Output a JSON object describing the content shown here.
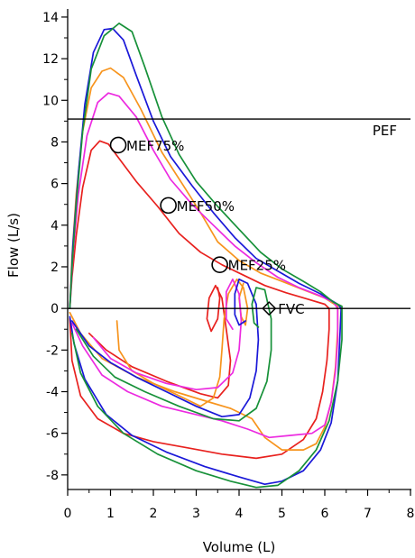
{
  "chart_data": {
    "type": "line",
    "xlabel": "Volume (L)",
    "ylabel": "Flow (L/s)",
    "xlim": [
      0,
      8
    ],
    "ylim": [
      -8.7,
      14.3
    ],
    "x_ticks": [
      0,
      1,
      2,
      3,
      4,
      5,
      6,
      7,
      8
    ],
    "y_ticks": [
      -8,
      -6,
      -4,
      -2,
      0,
      2,
      4,
      6,
      8,
      10,
      12,
      14
    ],
    "grid": false,
    "reference_lines": [
      {
        "label": "PEF",
        "y": 9.1
      },
      {
        "label": "",
        "y": 0
      }
    ],
    "markers": [
      {
        "label": "MEF75%",
        "x": 1.18,
        "y": 7.85,
        "shape": "circle"
      },
      {
        "label": "MEF50%",
        "x": 2.35,
        "y": 4.95,
        "shape": "circle"
      },
      {
        "label": "MEF25%",
        "x": 3.55,
        "y": 2.1,
        "shape": "circle"
      },
      {
        "label": "FVC",
        "x": 4.7,
        "y": 0.0,
        "shape": "diamond"
      }
    ],
    "series": [
      {
        "color": "#e8211e",
        "points": [
          [
            0.05,
            0
          ],
          [
            0.1,
            1.5
          ],
          [
            0.2,
            3.5
          ],
          [
            0.35,
            5.8
          ],
          [
            0.55,
            7.6
          ],
          [
            0.75,
            8.05
          ],
          [
            0.95,
            7.9
          ],
          [
            1.2,
            7.2
          ],
          [
            1.6,
            6.1
          ],
          [
            2.1,
            4.9
          ],
          [
            2.6,
            3.6
          ],
          [
            3.1,
            2.7
          ],
          [
            3.6,
            2.1
          ],
          [
            4.1,
            1.6
          ],
          [
            4.6,
            1.1
          ],
          [
            5.1,
            0.75
          ],
          [
            5.6,
            0.45
          ],
          [
            6.0,
            0.2
          ],
          [
            6.1,
            0
          ],
          [
            6.1,
            -1
          ],
          [
            6.05,
            -2.5
          ],
          [
            5.95,
            -4
          ],
          [
            5.8,
            -5.3
          ],
          [
            5.5,
            -6.3
          ],
          [
            5.0,
            -7.0
          ],
          [
            4.4,
            -7.2
          ],
          [
            3.6,
            -7.0
          ],
          [
            2.8,
            -6.7
          ],
          [
            2.0,
            -6.4
          ],
          [
            1.3,
            -6.0
          ],
          [
            0.7,
            -5.3
          ],
          [
            0.3,
            -4.2
          ],
          [
            0.1,
            -2.5
          ],
          [
            0.05,
            -0.5
          ]
        ]
      },
      {
        "color": "#e8211e",
        "points": [
          [
            0.5,
            -1.2
          ],
          [
            0.9,
            -2.0
          ],
          [
            1.5,
            -2.8
          ],
          [
            2.3,
            -3.5
          ],
          [
            3.1,
            -4.1
          ],
          [
            3.5,
            -4.3
          ],
          [
            3.75,
            -3.7
          ],
          [
            3.8,
            -2.5
          ],
          [
            3.7,
            -1.0
          ],
          [
            3.6,
            0.5
          ],
          [
            3.45,
            1.1
          ],
          [
            3.3,
            0.5
          ],
          [
            3.25,
            -0.5
          ],
          [
            3.35,
            -1.1
          ],
          [
            3.5,
            -0.5
          ],
          [
            3.55,
            0.5
          ],
          [
            3.5,
            1.0
          ]
        ]
      },
      {
        "color": "#f7941d",
        "points": [
          [
            0.05,
            0
          ],
          [
            0.1,
            2.5
          ],
          [
            0.2,
            5.5
          ],
          [
            0.35,
            8.5
          ],
          [
            0.55,
            10.6
          ],
          [
            0.8,
            11.4
          ],
          [
            1.0,
            11.55
          ],
          [
            1.3,
            11.1
          ],
          [
            1.7,
            9.6
          ],
          [
            2.2,
            7.5
          ],
          [
            2.7,
            5.9
          ],
          [
            3.1,
            4.6
          ],
          [
            3.5,
            3.2
          ],
          [
            4.0,
            2.3
          ],
          [
            4.5,
            1.7
          ],
          [
            5.0,
            1.3
          ],
          [
            5.5,
            0.9
          ],
          [
            6.0,
            0.5
          ],
          [
            6.3,
            0.1
          ],
          [
            6.3,
            -1
          ],
          [
            6.25,
            -2.8
          ],
          [
            6.15,
            -4.5
          ],
          [
            6.0,
            -5.7
          ],
          [
            5.8,
            -6.5
          ],
          [
            5.5,
            -6.8
          ],
          [
            5.0,
            -6.8
          ],
          [
            4.6,
            -6.2
          ],
          [
            4.3,
            -5.3
          ],
          [
            3.8,
            -4.8
          ],
          [
            3.3,
            -4.5
          ],
          [
            2.5,
            -4.0
          ],
          [
            1.6,
            -3.3
          ],
          [
            0.8,
            -2.4
          ],
          [
            0.3,
            -1.2
          ],
          [
            0.05,
            -0.2
          ]
        ]
      },
      {
        "color": "#f7941d",
        "points": [
          [
            1.15,
            -0.6
          ],
          [
            1.2,
            -2.0
          ],
          [
            1.5,
            -3.0
          ],
          [
            2.0,
            -3.6
          ],
          [
            2.7,
            -4.3
          ],
          [
            3.1,
            -4.7
          ],
          [
            3.4,
            -4.3
          ],
          [
            3.55,
            -3.3
          ],
          [
            3.6,
            -2.0
          ],
          [
            3.65,
            -0.5
          ],
          [
            3.75,
            0.7
          ],
          [
            3.95,
            1.4
          ],
          [
            4.1,
            1.0
          ],
          [
            4.2,
            0
          ],
          [
            4.15,
            -0.8
          ],
          [
            4.05,
            -0.4
          ],
          [
            4.0,
            0.5
          ],
          [
            4.1,
            1.2
          ]
        ]
      },
      {
        "color": "#ec2ae0",
        "points": [
          [
            0.05,
            0
          ],
          [
            0.12,
            2.5
          ],
          [
            0.25,
            5.5
          ],
          [
            0.45,
            8.3
          ],
          [
            0.7,
            9.9
          ],
          [
            0.95,
            10.35
          ],
          [
            1.2,
            10.2
          ],
          [
            1.6,
            9.2
          ],
          [
            2.0,
            7.6
          ],
          [
            2.4,
            6.2
          ],
          [
            2.9,
            5.0
          ],
          [
            3.4,
            4.0
          ],
          [
            3.9,
            3.0
          ],
          [
            4.4,
            2.2
          ],
          [
            4.9,
            1.5
          ],
          [
            5.4,
            1.0
          ],
          [
            5.9,
            0.6
          ],
          [
            6.2,
            0.3
          ],
          [
            6.3,
            0
          ],
          [
            6.3,
            -1.5
          ],
          [
            6.25,
            -3
          ],
          [
            6.15,
            -4.5
          ],
          [
            6.0,
            -5.6
          ],
          [
            5.7,
            -6.0
          ],
          [
            5.2,
            -6.1
          ],
          [
            4.7,
            -6.2
          ],
          [
            4.2,
            -5.8
          ],
          [
            3.6,
            -5.4
          ],
          [
            3.0,
            -5.1
          ],
          [
            2.2,
            -4.7
          ],
          [
            1.4,
            -4.0
          ],
          [
            0.8,
            -3.2
          ],
          [
            0.35,
            -1.8
          ],
          [
            0.1,
            -0.7
          ]
        ]
      },
      {
        "color": "#ec2ae0",
        "points": [
          [
            0.6,
            -1.4
          ],
          [
            1.0,
            -2.4
          ],
          [
            1.6,
            -3.1
          ],
          [
            2.3,
            -3.6
          ],
          [
            3.0,
            -3.9
          ],
          [
            3.5,
            -3.8
          ],
          [
            3.85,
            -3.1
          ],
          [
            4.0,
            -2.0
          ],
          [
            4.05,
            -0.6
          ],
          [
            4.0,
            0.7
          ],
          [
            3.85,
            1.4
          ],
          [
            3.7,
            0.8
          ],
          [
            3.7,
            -0.5
          ],
          [
            3.85,
            -1.0
          ]
        ]
      },
      {
        "color": "#1a18d8",
        "points": [
          [
            0.05,
            0
          ],
          [
            0.12,
            3
          ],
          [
            0.25,
            6.5
          ],
          [
            0.4,
            9.8
          ],
          [
            0.6,
            12.3
          ],
          [
            0.85,
            13.4
          ],
          [
            1.05,
            13.45
          ],
          [
            1.3,
            12.9
          ],
          [
            1.6,
            11.2
          ],
          [
            2.0,
            9.0
          ],
          [
            2.4,
            7.3
          ],
          [
            2.9,
            5.9
          ],
          [
            3.4,
            4.6
          ],
          [
            3.9,
            3.4
          ],
          [
            4.4,
            2.4
          ],
          [
            4.9,
            1.8
          ],
          [
            5.4,
            1.2
          ],
          [
            5.9,
            0.7
          ],
          [
            6.3,
            0.2
          ],
          [
            6.38,
            0
          ],
          [
            6.35,
            -1.5
          ],
          [
            6.3,
            -3.5
          ],
          [
            6.15,
            -5.5
          ],
          [
            5.9,
            -6.8
          ],
          [
            5.5,
            -7.8
          ],
          [
            5.0,
            -8.3
          ],
          [
            4.6,
            -8.45
          ],
          [
            4.0,
            -8.1
          ],
          [
            3.2,
            -7.6
          ],
          [
            2.3,
            -6.9
          ],
          [
            1.5,
            -6.1
          ],
          [
            0.9,
            -5.1
          ],
          [
            0.4,
            -3.4
          ],
          [
            0.15,
            -1.7
          ],
          [
            0.05,
            -0.4
          ]
        ]
      },
      {
        "color": "#1a18d8",
        "points": [
          [
            0.1,
            -0.6
          ],
          [
            0.5,
            -1.8
          ],
          [
            1.0,
            -2.6
          ],
          [
            1.6,
            -3.3
          ],
          [
            2.3,
            -4.0
          ],
          [
            3.0,
            -4.7
          ],
          [
            3.6,
            -5.2
          ],
          [
            4.0,
            -5.1
          ],
          [
            4.25,
            -4.3
          ],
          [
            4.4,
            -3.0
          ],
          [
            4.45,
            -1.5
          ],
          [
            4.4,
            0.2
          ],
          [
            4.2,
            1.2
          ],
          [
            4.0,
            1.4
          ],
          [
            3.9,
            0.7
          ],
          [
            3.9,
            -0.3
          ],
          [
            4.0,
            -0.8
          ],
          [
            4.15,
            -0.6
          ]
        ]
      },
      {
        "color": "#179139",
        "points": [
          [
            0.05,
            0
          ],
          [
            0.1,
            2.0
          ],
          [
            0.2,
            5.0
          ],
          [
            0.35,
            8.5
          ],
          [
            0.55,
            11.5
          ],
          [
            0.85,
            13.1
          ],
          [
            1.2,
            13.7
          ],
          [
            1.5,
            13.3
          ],
          [
            1.8,
            11.6
          ],
          [
            2.2,
            9.2
          ],
          [
            2.6,
            7.4
          ],
          [
            3.0,
            6.1
          ],
          [
            3.5,
            4.9
          ],
          [
            4.0,
            3.8
          ],
          [
            4.5,
            2.7
          ],
          [
            5.0,
            1.9
          ],
          [
            5.5,
            1.3
          ],
          [
            5.9,
            0.8
          ],
          [
            6.2,
            0.3
          ],
          [
            6.4,
            0.1
          ],
          [
            6.4,
            -1.5
          ],
          [
            6.3,
            -3.5
          ],
          [
            6.1,
            -5.4
          ],
          [
            5.8,
            -6.8
          ],
          [
            5.4,
            -7.8
          ],
          [
            4.9,
            -8.5
          ],
          [
            4.4,
            -8.6
          ],
          [
            3.8,
            -8.3
          ],
          [
            3.0,
            -7.8
          ],
          [
            2.1,
            -7.0
          ],
          [
            1.3,
            -6.0
          ],
          [
            0.7,
            -4.7
          ],
          [
            0.3,
            -3.1
          ],
          [
            0.1,
            -1.2
          ]
        ]
      },
      {
        "color": "#179139",
        "points": [
          [
            0.2,
            -1.0
          ],
          [
            0.6,
            -2.3
          ],
          [
            1.1,
            -3.3
          ],
          [
            1.8,
            -4.0
          ],
          [
            2.6,
            -4.7
          ],
          [
            3.4,
            -5.3
          ],
          [
            4.0,
            -5.4
          ],
          [
            4.4,
            -4.8
          ],
          [
            4.65,
            -3.5
          ],
          [
            4.75,
            -2.0
          ],
          [
            4.75,
            -0.5
          ],
          [
            4.6,
            0.9
          ],
          [
            4.4,
            1.0
          ],
          [
            4.3,
            0.2
          ],
          [
            4.35,
            -0.7
          ],
          [
            4.45,
            -0.9
          ]
        ]
      }
    ]
  }
}
